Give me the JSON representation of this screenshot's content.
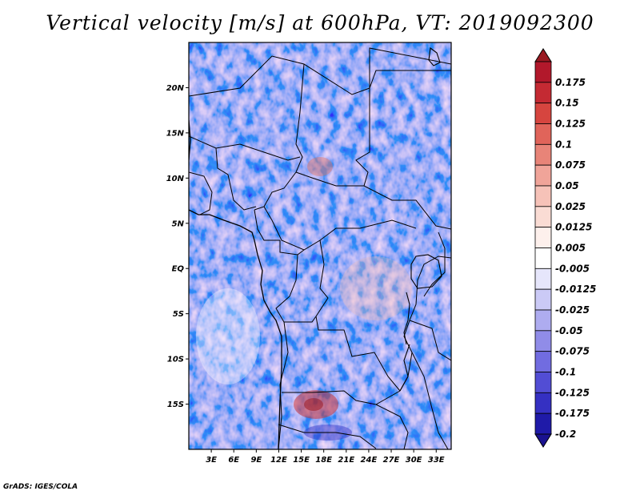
{
  "title": "Vertical velocity [m/s] at 600hPa, VT: 2019092300",
  "footer": "GrADS: IGES/COLA",
  "map": {
    "lon_range": [
      0,
      35
    ],
    "lat_range": [
      -20,
      25
    ],
    "lat_ticks": [
      {
        "value": 20,
        "label": "20N"
      },
      {
        "value": 15,
        "label": "15N"
      },
      {
        "value": 10,
        "label": "10N"
      },
      {
        "value": 5,
        "label": "5N"
      },
      {
        "value": 0,
        "label": "EQ"
      },
      {
        "value": -5,
        "label": "5S"
      },
      {
        "value": -10,
        "label": "10S"
      },
      {
        "value": -15,
        "label": "15S"
      }
    ],
    "lon_ticks": [
      {
        "value": 3,
        "label": "3E"
      },
      {
        "value": 6,
        "label": "6E"
      },
      {
        "value": 9,
        "label": "9E"
      },
      {
        "value": 12,
        "label": "12E"
      },
      {
        "value": 15,
        "label": "15E"
      },
      {
        "value": 18,
        "label": "18E"
      },
      {
        "value": 21,
        "label": "21E"
      },
      {
        "value": 24,
        "label": "24E"
      },
      {
        "value": 27,
        "label": "27E"
      },
      {
        "value": 30,
        "label": "30E"
      },
      {
        "value": 33,
        "label": "33E"
      }
    ]
  },
  "colorbar": {
    "levels": [
      {
        "label": "0.175",
        "color": "#b2182b"
      },
      {
        "label": "0.15",
        "color": "#c42a33"
      },
      {
        "label": "0.125",
        "color": "#d6453f"
      },
      {
        "label": "0.1",
        "color": "#e0645a"
      },
      {
        "label": "0.075",
        "color": "#e88478"
      },
      {
        "label": "0.05",
        "color": "#f0a499"
      },
      {
        "label": "0.025",
        "color": "#f6c2b8"
      },
      {
        "label": "0.0125",
        "color": "#fadcd4"
      },
      {
        "label": "0.005",
        "color": "#fdf0ec"
      },
      {
        "label": "-0.005",
        "color": "#ffffff"
      },
      {
        "label": "-0.0125",
        "color": "#e6e6fb"
      },
      {
        "label": "-0.025",
        "color": "#cbcaf6"
      },
      {
        "label": "-0.05",
        "color": "#aeacf0"
      },
      {
        "label": "-0.075",
        "color": "#908ce8"
      },
      {
        "label": "-0.1",
        "color": "#716ce0"
      },
      {
        "label": "-0.125",
        "color": "#524dd4"
      },
      {
        "label": "-0.175",
        "color": "#3530c2"
      },
      {
        "label": "-0.2",
        "color": "#1f1aa8"
      }
    ],
    "top_color": "#9a1a22",
    "bottom_color": "#1a1290"
  }
}
